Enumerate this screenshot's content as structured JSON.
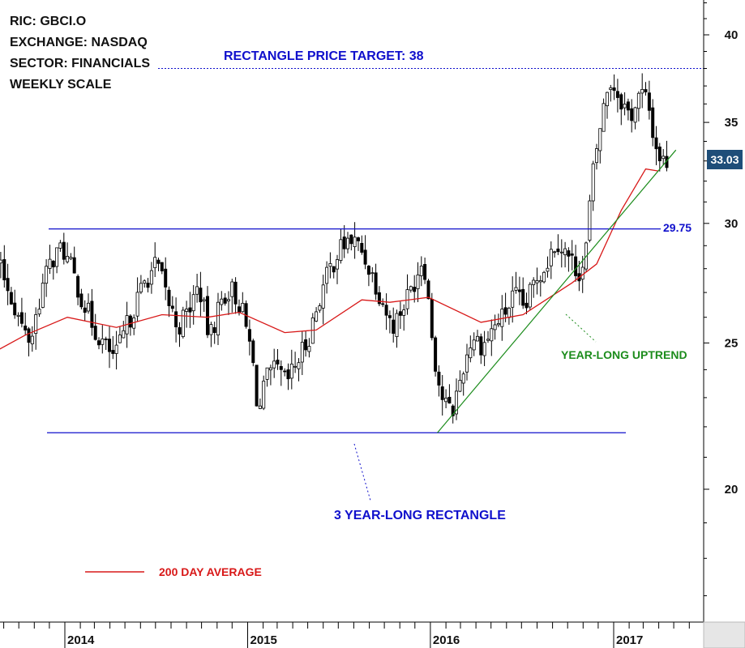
{
  "info": {
    "ric": "RIC: GBCI.O",
    "exchange": "EXCHANGE: NASDAQ",
    "sector": "SECTOR: FINANCIALS",
    "scale": "WEEKLY SCALE"
  },
  "annotations": {
    "target_label": "RECTANGLE PRICE TARGET: 38",
    "rectangle_label": "3 YEAR-LONG RECTANGLE",
    "uptrend_label": "YEAR-LONG UPTREND",
    "ma_legend_label": "200 DAY AVERAGE",
    "resistance_value_label": "29.75",
    "last_price_label": "33.03"
  },
  "colors": {
    "blue": "#1010cc",
    "green": "#1c8c1c",
    "red": "#d81818",
    "candle": "#000000",
    "last_price_bg": "#1f4e79"
  },
  "chart_data": {
    "type": "candlestick",
    "scale": "log",
    "ylim": [
      15.5,
      42.5
    ],
    "y_ticks": [
      20,
      25,
      30,
      35,
      40
    ],
    "x_ticks": [
      "2014",
      "2015",
      "2016",
      "2017"
    ],
    "x_range": [
      "2013-01-28",
      "2017-04-17"
    ],
    "x_tick_dates": [
      "2014-01-01",
      "2015-01-01",
      "2016-01-01",
      "2017-01-01"
    ],
    "resistance": 29.75,
    "support": 21.8,
    "target": 38,
    "last_price": 33.03,
    "uptrend_line": [
      [
        "2016-01-15",
        21.8
      ],
      [
        "2017-03-31",
        32.5
      ]
    ],
    "weekly_close": [
      [
        "2013-02-01",
        23.2
      ],
      [
        "2013-02-22",
        24.2
      ],
      [
        "2013-03-15",
        25.2
      ],
      [
        "2013-04-05",
        26.5
      ],
      [
        "2013-04-26",
        27.6
      ],
      [
        "2013-05-17",
        28.6
      ],
      [
        "2013-06-07",
        29.3
      ],
      [
        "2013-06-28",
        28.6
      ],
      [
        "2013-07-19",
        29.4
      ],
      [
        "2013-08-09",
        28.5
      ],
      [
        "2013-08-30",
        27.8
      ],
      [
        "2013-09-20",
        26.6
      ],
      [
        "2013-10-11",
        25.4
      ],
      [
        "2013-10-25",
        25.1
      ],
      [
        "2013-11-15",
        27.1
      ],
      [
        "2013-12-06",
        28.4
      ],
      [
        "2013-12-27",
        28.9
      ],
      [
        "2014-01-17",
        27.8
      ],
      [
        "2014-02-07",
        26.6
      ],
      [
        "2014-02-28",
        25.6
      ],
      [
        "2014-03-21",
        24.9
      ],
      [
        "2014-04-11",
        24.4
      ],
      [
        "2014-05-02",
        25.5
      ],
      [
        "2014-05-23",
        26.6
      ],
      [
        "2014-06-13",
        27.6
      ],
      [
        "2014-07-04",
        28.2
      ],
      [
        "2014-07-25",
        26.7
      ],
      [
        "2014-08-15",
        25.6
      ],
      [
        "2014-09-05",
        26.3
      ],
      [
        "2014-09-26",
        27.3
      ],
      [
        "2014-10-17",
        25.1
      ],
      [
        "2014-11-07",
        26.6
      ],
      [
        "2014-11-28",
        27.2
      ],
      [
        "2014-12-19",
        26.4
      ],
      [
        "2015-01-09",
        24.6
      ],
      [
        "2015-01-23",
        22.4
      ],
      [
        "2015-02-06",
        23.6
      ],
      [
        "2015-02-27",
        24.0
      ],
      [
        "2015-03-20",
        23.5
      ],
      [
        "2015-04-10",
        24.3
      ],
      [
        "2015-05-01",
        25.1
      ],
      [
        "2015-05-22",
        26.6
      ],
      [
        "2015-06-12",
        27.9
      ],
      [
        "2015-07-03",
        28.8
      ],
      [
        "2015-07-24",
        29.3
      ],
      [
        "2015-08-14",
        28.9
      ],
      [
        "2015-09-04",
        27.9
      ],
      [
        "2015-09-25",
        26.8
      ],
      [
        "2015-10-16",
        25.6
      ],
      [
        "2015-11-06",
        26.4
      ],
      [
        "2015-11-27",
        27.3
      ],
      [
        "2015-12-18",
        28.6
      ],
      [
        "2016-01-08",
        24.6
      ],
      [
        "2016-01-22",
        23.1
      ],
      [
        "2016-02-12",
        22.4
      ],
      [
        "2016-03-04",
        23.9
      ],
      [
        "2016-03-25",
        25.3
      ],
      [
        "2016-04-15",
        24.9
      ],
      [
        "2016-05-06",
        25.6
      ],
      [
        "2016-05-27",
        26.1
      ],
      [
        "2016-06-17",
        26.9
      ],
      [
        "2016-07-08",
        26.3
      ],
      [
        "2016-07-29",
        27.6
      ],
      [
        "2016-08-19",
        28.2
      ],
      [
        "2016-09-09",
        29.3
      ],
      [
        "2016-09-30",
        28.6
      ],
      [
        "2016-10-21",
        27.9
      ],
      [
        "2016-11-04",
        28.1
      ],
      [
        "2016-11-18",
        31.9
      ],
      [
        "2016-12-02",
        34.3
      ],
      [
        "2016-12-23",
        37.4
      ],
      [
        "2017-01-13",
        36.4
      ],
      [
        "2017-02-03",
        35.3
      ],
      [
        "2017-02-24",
        36.6
      ],
      [
        "2017-03-10",
        36.1
      ],
      [
        "2017-03-24",
        33.9
      ],
      [
        "2017-04-07",
        33.0
      ]
    ],
    "moving_average_200d": [
      [
        "2013-01-28",
        19.0
      ],
      [
        "2013-03-18",
        21.3
      ],
      [
        "2013-05-20",
        23.1
      ],
      [
        "2013-07-29",
        24.5
      ],
      [
        "2013-10-14",
        25.3
      ],
      [
        "2014-01-06",
        26.0
      ],
      [
        "2014-04-14",
        25.6
      ],
      [
        "2014-07-14",
        26.1
      ],
      [
        "2014-10-13",
        26.0
      ],
      [
        "2014-12-15",
        26.2
      ],
      [
        "2015-03-16",
        25.4
      ],
      [
        "2015-05-18",
        25.5
      ],
      [
        "2015-08-17",
        26.7
      ],
      [
        "2015-10-12",
        26.6
      ],
      [
        "2015-12-28",
        26.8
      ],
      [
        "2016-04-11",
        25.8
      ],
      [
        "2016-07-04",
        26.1
      ],
      [
        "2016-10-10",
        27.4
      ],
      [
        "2016-11-28",
        28.2
      ],
      [
        "2017-01-16",
        30.6
      ],
      [
        "2017-03-06",
        32.6
      ],
      [
        "2017-03-31",
        32.5
      ]
    ]
  }
}
